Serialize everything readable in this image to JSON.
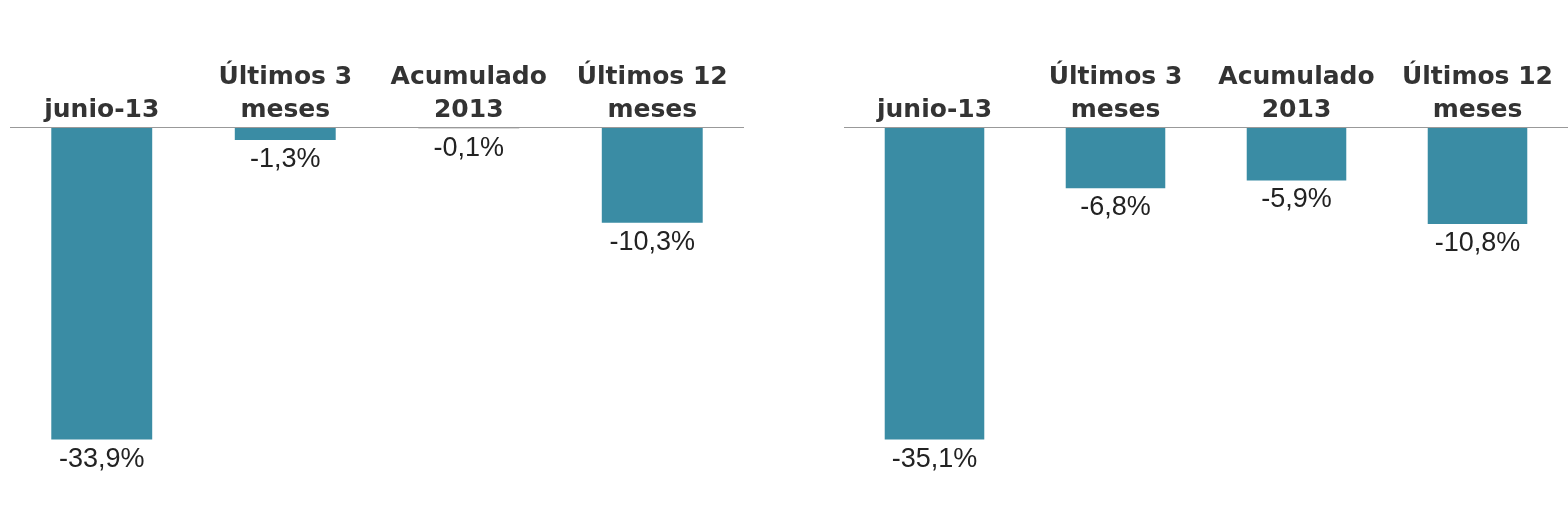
{
  "chart_data": [
    {
      "type": "bar",
      "categories": [
        "junio-13",
        "Últimos 3 meses",
        "Acumulado 2013",
        "Últimos 12 meses"
      ],
      "values": [
        -33.9,
        -1.3,
        -0.1,
        -10.3
      ],
      "colors": [
        "#3a8ca4",
        "#3a8ca4",
        "#d9d9d9",
        "#3a8ca4"
      ],
      "value_labels": [
        "-33,9%",
        "-1,3%",
        "-0,1%",
        "-10,3%"
      ],
      "tick_labels": "x"
    },
    {
      "type": "bar",
      "categories": [
        "junio-13",
        "Últimos 3 meses",
        "Acumulado 2013",
        "Últimos 12 meses"
      ],
      "values": [
        -35.1,
        -6.8,
        -5.9,
        -10.8
      ],
      "color": "#3a8ca4",
      "value_labels": [
        "-35,1%",
        "-6,8%",
        "-5,9%",
        "-10,8%"
      ],
      "tick_labels": "x"
    }
  ]
}
